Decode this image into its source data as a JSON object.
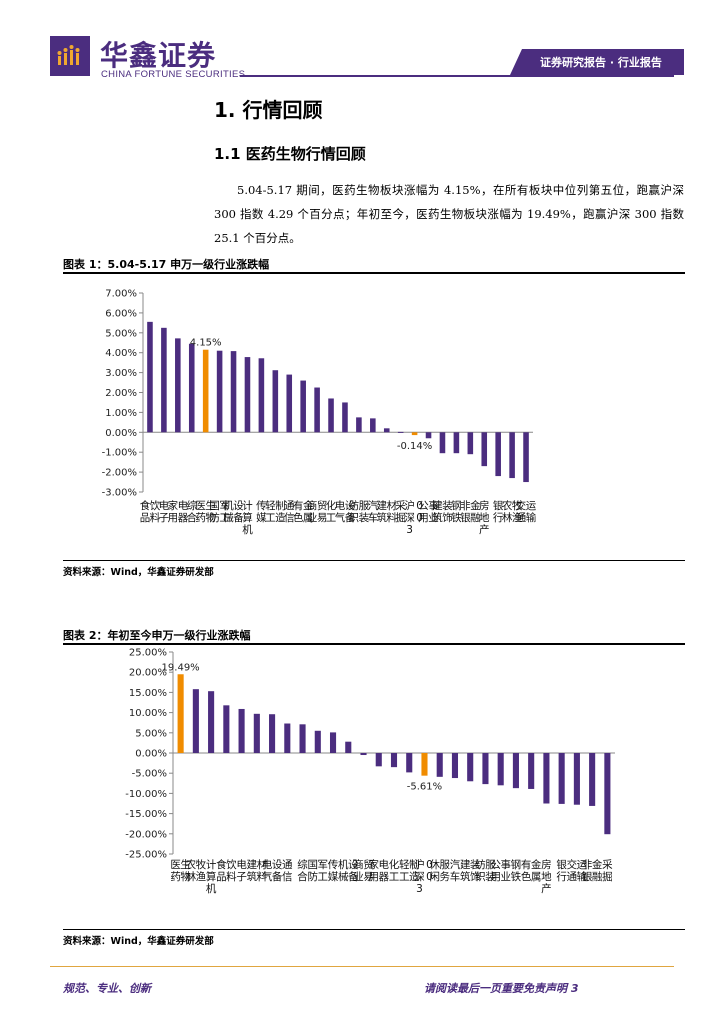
{
  "header": {
    "brand_cn": "华鑫证券",
    "brand_en": "CHINA FORTUNE SECURITIES",
    "report_type": "证券研究报告 · 行业报告"
  },
  "section": {
    "title": "1. 行情回顾",
    "subtitle": "1.1 医药生物行情回顾",
    "paragraph": "5.04-5.17 期间，医药生物板块涨幅为 4.15%，在所有板块中位列第五位，跑赢沪深 300 指数 4.29 个百分点；年初至今，医药生物板块涨幅为 19.49%，跑赢沪深 300 指数 25.1 个百分点。"
  },
  "figure1": {
    "title": "图表 1：5.04-5.17 申万一级行业涨跌幅",
    "source": "资料来源：Wind，华鑫证券研发部"
  },
  "figure2": {
    "title": "图表 2：年初至今申万一级行业涨跌幅",
    "source": "资料来源：Wind，华鑫证券研发部"
  },
  "footer": {
    "left": "规范、专业、创新",
    "right": "请阅读最后一页重要免责声明 3"
  },
  "colors": {
    "brand": "#4b2d7f",
    "bar": "#4b2d7f",
    "highlight": "#f08c00"
  },
  "chart_data": [
    {
      "type": "bar",
      "title": "",
      "categories": [
        "食品饮料",
        "电子",
        "家用电器",
        "综合",
        "医药生物",
        "国防军工",
        "机械设备",
        "计算机",
        "传媒",
        "轻工制造",
        "通信",
        "有色金属",
        "商业贸易",
        "化工",
        "电气设备",
        "纺织服装",
        "汽车",
        "建筑材料",
        "采掘",
        "沪深300",
        "公用事业",
        "建筑装饰",
        "钢铁",
        "非银金融",
        "房地产",
        "银行",
        "农林牧渔",
        "交通运输"
      ],
      "values": [
        5.55,
        5.25,
        4.72,
        4.45,
        4.15,
        4.1,
        4.08,
        3.78,
        3.72,
        3.12,
        2.9,
        2.6,
        2.25,
        1.7,
        1.5,
        0.75,
        0.7,
        0.2,
        0.02,
        -0.14,
        -0.3,
        -1.05,
        -1.05,
        -1.1,
        -1.7,
        -2.2,
        -2.3,
        -2.5
      ],
      "highlight": [
        "医药生物",
        "沪深300"
      ],
      "data_labels": {
        "医药生物": "4.15%",
        "沪深300": "-0.14%"
      },
      "ylim": [
        -3,
        7
      ],
      "yticks": [
        "7.00%",
        "6.00%",
        "5.00%",
        "4.00%",
        "3.00%",
        "2.00%",
        "1.00%",
        "0.00%",
        "-1.00%",
        "-2.00%",
        "-3.00%"
      ],
      "xlabel": "",
      "ylabel": ""
    },
    {
      "type": "bar",
      "title": "",
      "categories": [
        "医药生物",
        "农林牧渔",
        "计算机",
        "食品饮料",
        "电子",
        "建筑材料",
        "电气设备",
        "通信",
        "综合",
        "国防军工",
        "传媒",
        "机械设备",
        "商业贸易",
        "家用电器",
        "化工",
        "轻工制造",
        "沪深300",
        "休闲服务",
        "汽车",
        "建筑装饰",
        "纺织服装",
        "公用事业",
        "钢铁",
        "有色金属",
        "房地产",
        "银行",
        "交通运输",
        "非银金融",
        "采掘"
      ],
      "values": [
        19.49,
        15.8,
        15.3,
        11.8,
        10.9,
        9.7,
        9.6,
        7.3,
        7.1,
        5.5,
        5.1,
        2.8,
        -0.5,
        -3.3,
        -3.5,
        -4.8,
        -5.61,
        -5.9,
        -6.2,
        -7.0,
        -7.7,
        -8.0,
        -8.7,
        -8.9,
        -12.5,
        -12.6,
        -12.8,
        -13.1,
        -20.1
      ],
      "highlight": [
        "医药生物",
        "沪深300"
      ],
      "data_labels": {
        "医药生物": "19.49%",
        "沪深300": "-5.61%"
      },
      "ylim": [
        -25,
        25
      ],
      "yticks": [
        "25.00%",
        "20.00%",
        "15.00%",
        "10.00%",
        "5.00%",
        "0.00%",
        "-5.00%",
        "-10.00%",
        "-15.00%",
        "-20.00%",
        "-25.00%"
      ],
      "xlabel": "",
      "ylabel": ""
    }
  ]
}
